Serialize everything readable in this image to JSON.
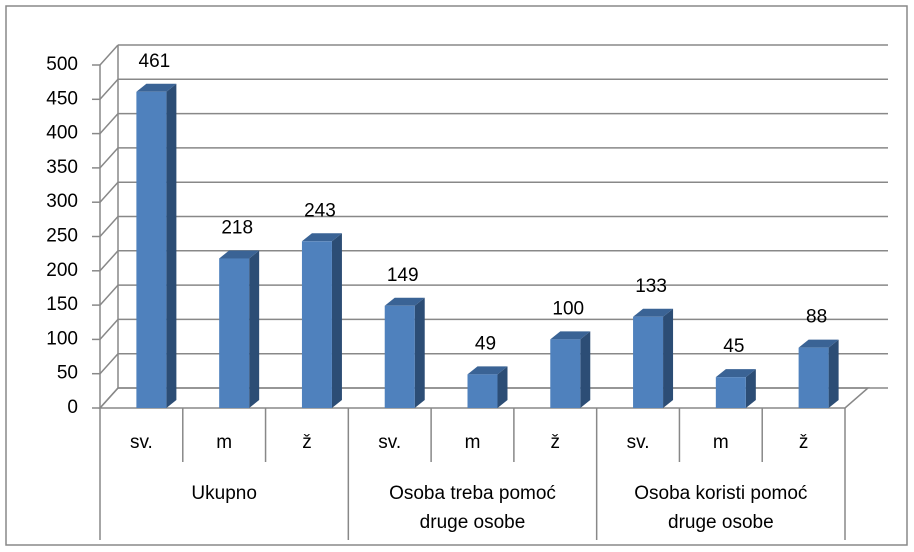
{
  "chart_data": {
    "type": "bar3d",
    "categories": [
      "sv.",
      "m",
      "ž",
      "sv.",
      "m",
      "ž",
      "sv.",
      "m",
      "ž"
    ],
    "groups": [
      "Ukupno",
      "Osoba treba pomoć druge osobe",
      "Osoba koristi pomoć druge osobe"
    ],
    "values": [
      461,
      218,
      243,
      149,
      49,
      100,
      133,
      45,
      88
    ],
    "color": "#4f81bd",
    "ylim": [
      0,
      500
    ],
    "yticks": [
      0,
      50,
      100,
      150,
      200,
      250,
      300,
      350,
      400,
      450,
      500
    ],
    "grid": true
  }
}
